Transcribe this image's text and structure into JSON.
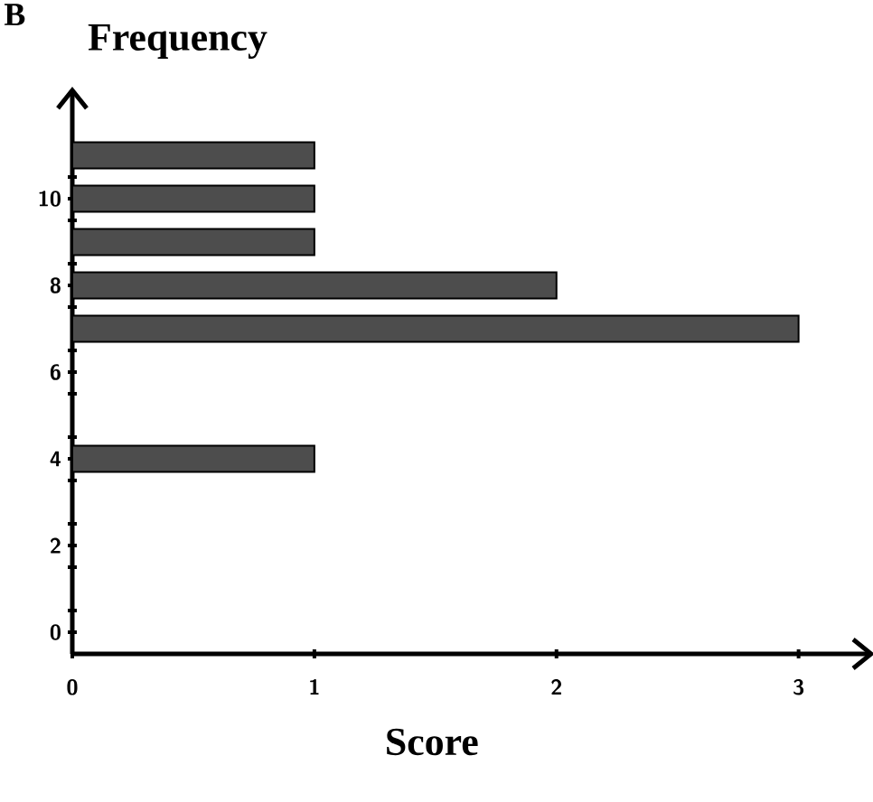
{
  "chart_data": {
    "type": "bar",
    "orientation": "horizontal",
    "annotations": [
      "B"
    ],
    "xlabel": "Score",
    "ylabel": "Frequency",
    "x": [
      4,
      7,
      8,
      9,
      10,
      11
    ],
    "values": [
      1,
      3,
      2,
      1,
      1,
      1
    ],
    "color": "#4d4d4d",
    "xlim": [
      0,
      3.3
    ],
    "xticks": [
      0,
      1,
      2,
      3
    ],
    "ylim": [
      -0.5,
      12.5
    ],
    "yticks": [
      0,
      {
        "value": 0.5,
        "label": null
      },
      {
        "value": 1.5,
        "label": null
      },
      2,
      {
        "value": 2.5,
        "label": null
      },
      {
        "value": 3.5,
        "label": null
      },
      4,
      {
        "value": 4.5,
        "label": null
      },
      {
        "value": 5.5,
        "label": null
      },
      6,
      {
        "value": 6.5,
        "label": null
      },
      {
        "value": 7.5,
        "label": null
      },
      8,
      {
        "value": 8.5,
        "label": null
      },
      {
        "value": 9.5,
        "label": null
      },
      10,
      {
        "value": 10.5,
        "label": null
      }
    ]
  }
}
